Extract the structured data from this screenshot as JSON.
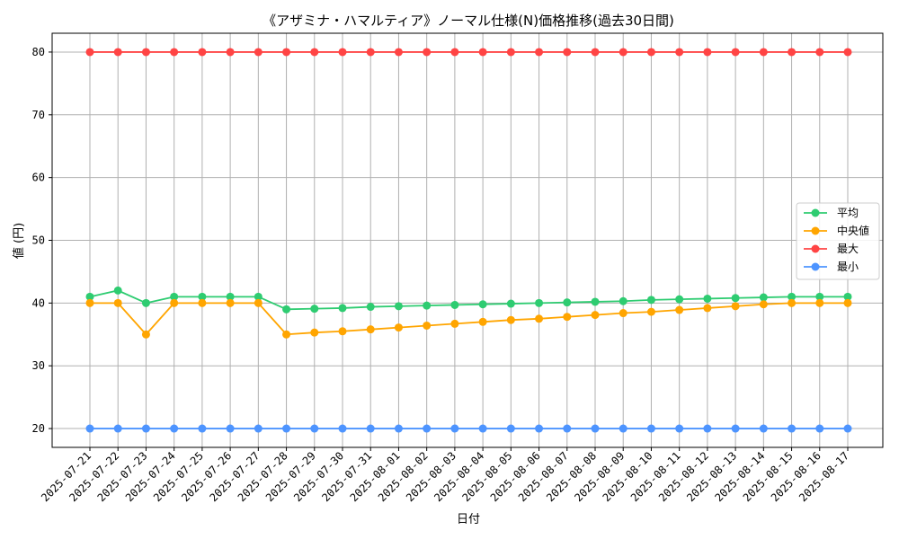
{
  "chart_data": {
    "type": "line",
    "title": "《アザミナ・ハマルティア》ノーマル仕様(N)価格推移(過去30日間)",
    "xlabel": "日付",
    "ylabel": "値 (円)",
    "ylim": [
      17,
      83
    ],
    "yticks": [
      20,
      30,
      40,
      50,
      60,
      70,
      80
    ],
    "grid": true,
    "legend_position": "center-right",
    "categories": [
      "2025-07-21",
      "2025-07-22",
      "2025-07-23",
      "2025-07-24",
      "2025-07-25",
      "2025-07-26",
      "2025-07-27",
      "2025-07-28",
      "2025-07-29",
      "2025-07-30",
      "2025-07-31",
      "2025-08-01",
      "2025-08-02",
      "2025-08-03",
      "2025-08-04",
      "2025-08-05",
      "2025-08-06",
      "2025-08-07",
      "2025-08-08",
      "2025-08-09",
      "2025-08-10",
      "2025-08-11",
      "2025-08-12",
      "2025-08-13",
      "2025-08-14",
      "2025-08-15",
      "2025-08-16",
      "2025-08-17"
    ],
    "series": [
      {
        "name": "平均",
        "color": "#2ecc71",
        "values": [
          41,
          42,
          40,
          41,
          41,
          41,
          41,
          39,
          39.1,
          39.2,
          39.4,
          39.5,
          39.6,
          39.7,
          39.8,
          39.9,
          40,
          40.1,
          40.2,
          40.3,
          40.5,
          40.6,
          40.7,
          40.8,
          40.9,
          41,
          41,
          41
        ]
      },
      {
        "name": "中央値",
        "color": "#ffa500",
        "values": [
          40,
          40,
          35,
          40,
          40,
          40,
          40,
          35,
          35.3,
          35.5,
          35.8,
          36.1,
          36.4,
          36.7,
          37,
          37.3,
          37.5,
          37.8,
          38.1,
          38.4,
          38.6,
          38.9,
          39.2,
          39.5,
          39.8,
          40,
          40,
          40
        ]
      },
      {
        "name": "最大",
        "color": "#ff4444",
        "values": [
          80,
          80,
          80,
          80,
          80,
          80,
          80,
          80,
          80,
          80,
          80,
          80,
          80,
          80,
          80,
          80,
          80,
          80,
          80,
          80,
          80,
          80,
          80,
          80,
          80,
          80,
          80,
          80
        ]
      },
      {
        "name": "最小",
        "color": "#4d94ff",
        "values": [
          20,
          20,
          20,
          20,
          20,
          20,
          20,
          20,
          20,
          20,
          20,
          20,
          20,
          20,
          20,
          20,
          20,
          20,
          20,
          20,
          20,
          20,
          20,
          20,
          20,
          20,
          20,
          20
        ]
      }
    ]
  }
}
